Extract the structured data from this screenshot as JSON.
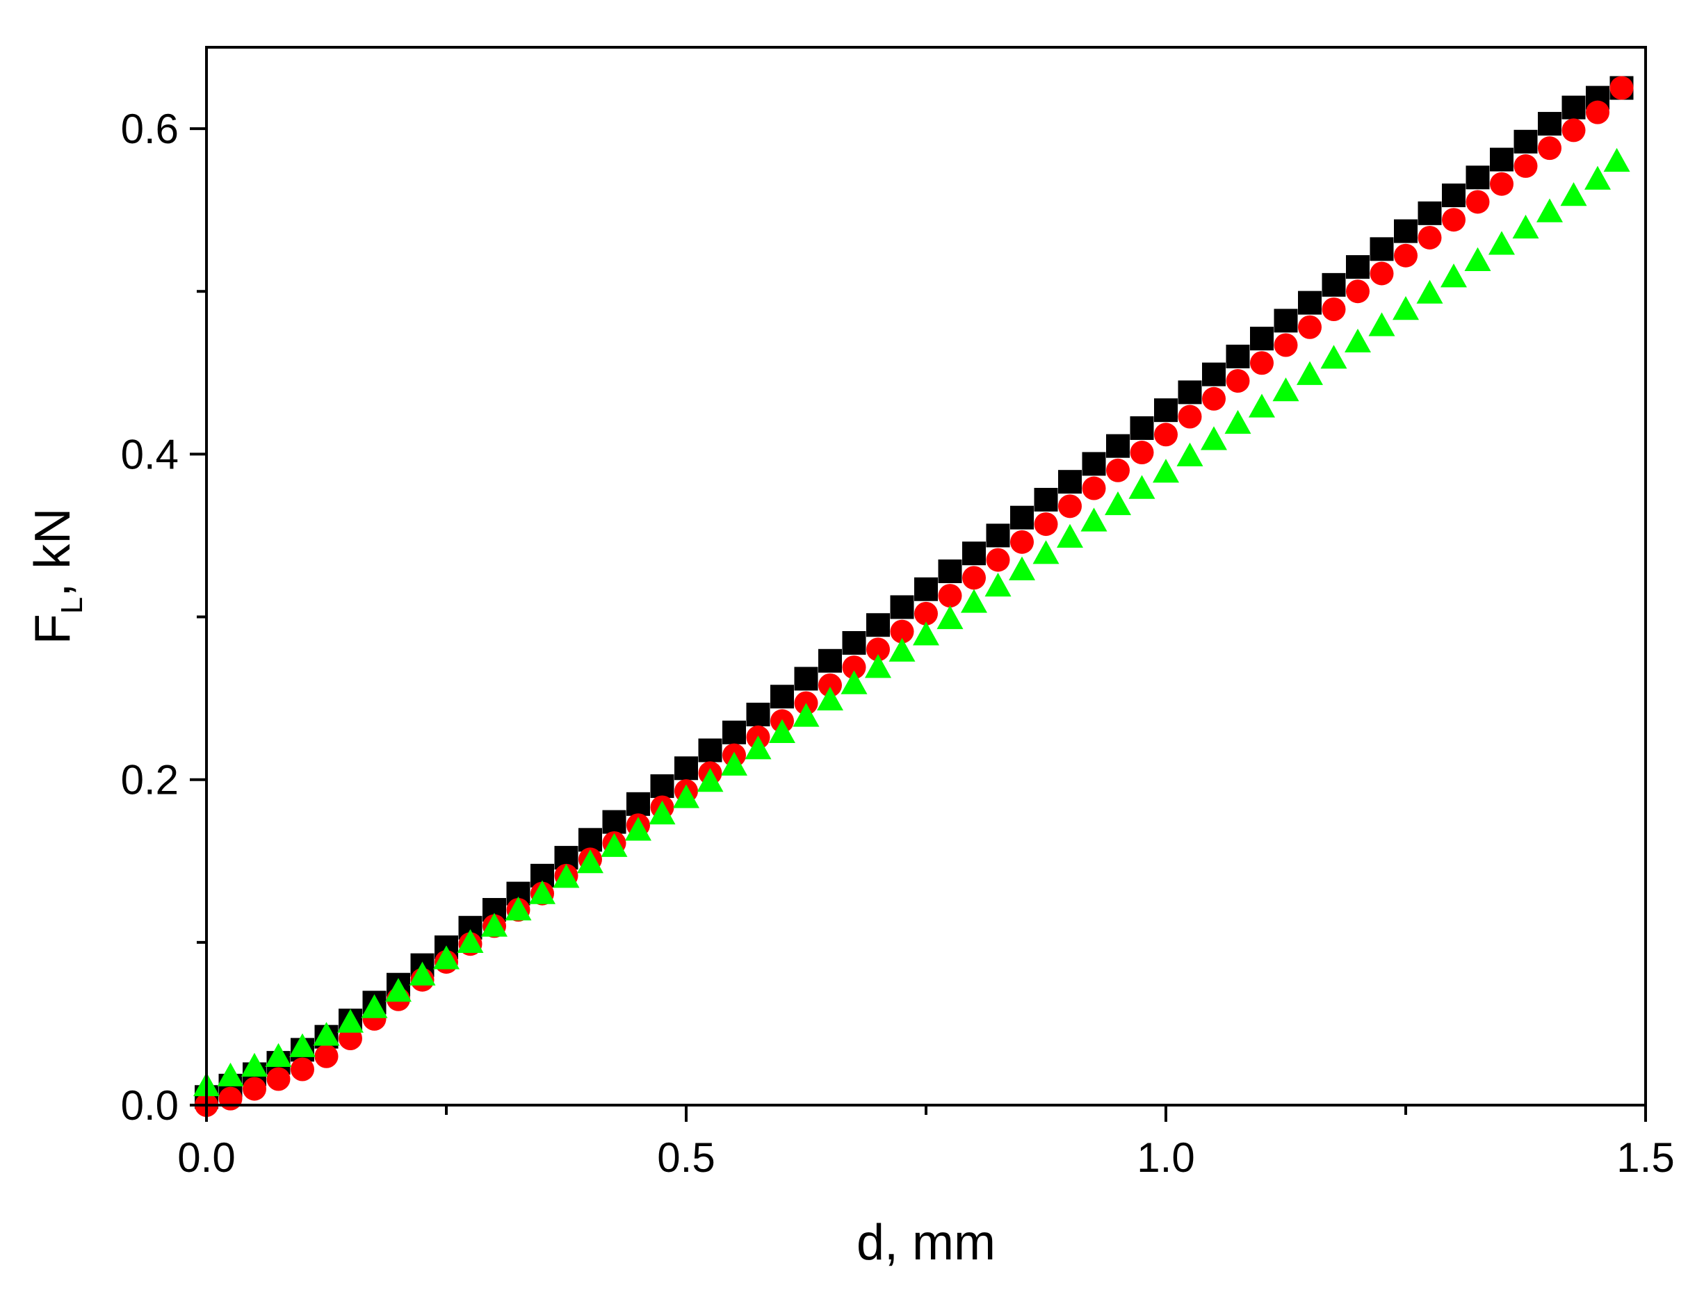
{
  "chart_data": {
    "type": "scatter",
    "title": "",
    "xlabel": "d, mm",
    "ylabel_main": "F",
    "ylabel_sub": "L",
    "ylabel_tail": ", kN",
    "xlim": [
      0.0,
      1.5
    ],
    "ylim": [
      0.0,
      0.65
    ],
    "x_ticks": [
      0.0,
      0.5,
      1.0,
      1.5
    ],
    "x_tick_labels": [
      "0.0",
      "0.5",
      "1.0",
      "1.5"
    ],
    "x_minor_ticks": [
      0.25,
      0.75,
      1.25
    ],
    "y_ticks": [
      0.0,
      0.2,
      0.4,
      0.6
    ],
    "y_tick_labels": [
      "0.0",
      "0.2",
      "0.4",
      "0.6"
    ],
    "y_minor_ticks": [
      0.1,
      0.3,
      0.5
    ],
    "grid": false,
    "legend": "none",
    "series": [
      {
        "marker": "square",
        "color": "#000000",
        "x": [
          0.0,
          0.025,
          0.05,
          0.075,
          0.1,
          0.125,
          0.15,
          0.175,
          0.2,
          0.225,
          0.25,
          0.275,
          0.3,
          0.325,
          0.35,
          0.375,
          0.4,
          0.425,
          0.45,
          0.475,
          0.5,
          0.525,
          0.55,
          0.575,
          0.6,
          0.625,
          0.65,
          0.675,
          0.7,
          0.725,
          0.75,
          0.775,
          0.8,
          0.825,
          0.85,
          0.875,
          0.9,
          0.925,
          0.95,
          0.975,
          1.0,
          1.025,
          1.05,
          1.075,
          1.1,
          1.125,
          1.15,
          1.175,
          1.2,
          1.225,
          1.25,
          1.275,
          1.3,
          1.325,
          1.35,
          1.375,
          1.4,
          1.425,
          1.45,
          1.475
        ],
        "y": [
          0.005,
          0.012,
          0.019,
          0.026,
          0.034,
          0.042,
          0.052,
          0.063,
          0.074,
          0.086,
          0.097,
          0.109,
          0.12,
          0.13,
          0.141,
          0.152,
          0.163,
          0.174,
          0.185,
          0.196,
          0.207,
          0.218,
          0.229,
          0.24,
          0.251,
          0.262,
          0.273,
          0.284,
          0.295,
          0.306,
          0.317,
          0.328,
          0.339,
          0.35,
          0.361,
          0.372,
          0.383,
          0.394,
          0.405,
          0.416,
          0.427,
          0.438,
          0.449,
          0.46,
          0.471,
          0.482,
          0.493,
          0.504,
          0.515,
          0.526,
          0.537,
          0.548,
          0.559,
          0.57,
          0.581,
          0.592,
          0.603,
          0.613,
          0.619,
          0.625
        ]
      },
      {
        "marker": "circle",
        "color": "#ff0000",
        "x": [
          0.0,
          0.025,
          0.05,
          0.075,
          0.1,
          0.125,
          0.15,
          0.175,
          0.2,
          0.225,
          0.25,
          0.275,
          0.3,
          0.325,
          0.35,
          0.375,
          0.4,
          0.425,
          0.45,
          0.475,
          0.5,
          0.525,
          0.55,
          0.575,
          0.6,
          0.625,
          0.65,
          0.675,
          0.7,
          0.725,
          0.75,
          0.775,
          0.8,
          0.825,
          0.85,
          0.875,
          0.9,
          0.925,
          0.95,
          0.975,
          1.0,
          1.025,
          1.05,
          1.075,
          1.1,
          1.125,
          1.15,
          1.175,
          1.2,
          1.225,
          1.25,
          1.275,
          1.3,
          1.325,
          1.35,
          1.375,
          1.4,
          1.425,
          1.45,
          1.475
        ],
        "y": [
          0.0,
          0.004,
          0.01,
          0.016,
          0.022,
          0.03,
          0.041,
          0.053,
          0.065,
          0.077,
          0.088,
          0.099,
          0.11,
          0.12,
          0.13,
          0.141,
          0.151,
          0.161,
          0.172,
          0.183,
          0.193,
          0.204,
          0.215,
          0.226,
          0.236,
          0.247,
          0.258,
          0.269,
          0.28,
          0.291,
          0.302,
          0.313,
          0.324,
          0.335,
          0.346,
          0.357,
          0.368,
          0.379,
          0.39,
          0.401,
          0.412,
          0.423,
          0.434,
          0.445,
          0.456,
          0.467,
          0.478,
          0.489,
          0.5,
          0.511,
          0.522,
          0.533,
          0.544,
          0.555,
          0.566,
          0.577,
          0.588,
          0.599,
          0.61,
          0.625
        ]
      },
      {
        "marker": "triangle",
        "color": "#00ff00",
        "x": [
          0.0,
          0.025,
          0.05,
          0.075,
          0.1,
          0.125,
          0.15,
          0.175,
          0.2,
          0.225,
          0.25,
          0.275,
          0.3,
          0.325,
          0.35,
          0.375,
          0.4,
          0.425,
          0.45,
          0.475,
          0.5,
          0.525,
          0.55,
          0.575,
          0.6,
          0.625,
          0.65,
          0.675,
          0.7,
          0.725,
          0.75,
          0.775,
          0.8,
          0.825,
          0.85,
          0.875,
          0.9,
          0.925,
          0.95,
          0.975,
          1.0,
          1.025,
          1.05,
          1.075,
          1.1,
          1.125,
          1.15,
          1.175,
          1.2,
          1.225,
          1.25,
          1.275,
          1.3,
          1.325,
          1.35,
          1.375,
          1.4,
          1.425,
          1.45,
          1.47
        ],
        "y": [
          0.012,
          0.018,
          0.024,
          0.03,
          0.036,
          0.043,
          0.051,
          0.06,
          0.07,
          0.08,
          0.09,
          0.1,
          0.11,
          0.12,
          0.13,
          0.14,
          0.149,
          0.159,
          0.169,
          0.179,
          0.189,
          0.199,
          0.209,
          0.219,
          0.229,
          0.239,
          0.249,
          0.259,
          0.269,
          0.279,
          0.289,
          0.299,
          0.309,
          0.319,
          0.329,
          0.339,
          0.349,
          0.359,
          0.369,
          0.379,
          0.389,
          0.399,
          0.409,
          0.419,
          0.429,
          0.439,
          0.449,
          0.459,
          0.469,
          0.479,
          0.489,
          0.499,
          0.509,
          0.519,
          0.529,
          0.539,
          0.549,
          0.559,
          0.569,
          0.58
        ]
      }
    ]
  }
}
